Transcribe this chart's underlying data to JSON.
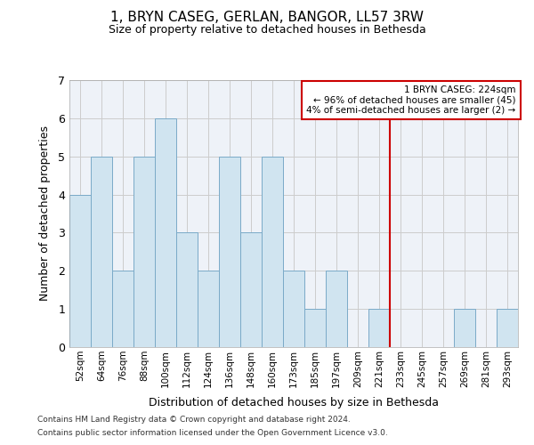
{
  "title1": "1, BRYN CASEG, GERLAN, BANGOR, LL57 3RW",
  "title2": "Size of property relative to detached houses in Bethesda",
  "xlabel": "Distribution of detached houses by size in Bethesda",
  "ylabel": "Number of detached properties",
  "categories": [
    "52sqm",
    "64sqm",
    "76sqm",
    "88sqm",
    "100sqm",
    "112sqm",
    "124sqm",
    "136sqm",
    "148sqm",
    "160sqm",
    "173sqm",
    "185sqm",
    "197sqm",
    "209sqm",
    "221sqm",
    "233sqm",
    "245sqm",
    "257sqm",
    "269sqm",
    "281sqm",
    "293sqm"
  ],
  "values": [
    4,
    5,
    2,
    5,
    6,
    3,
    2,
    5,
    3,
    5,
    2,
    1,
    2,
    0,
    1,
    0,
    0,
    0,
    1,
    0,
    1
  ],
  "bar_color": "#d0e4f0",
  "bar_edge_color": "#7aaac8",
  "grid_color": "#cccccc",
  "bg_color": "#eef2f8",
  "red_line_x": 14.5,
  "annotation_line1": "1 BRYN CASEG: 224sqm",
  "annotation_line2": "← 96% of detached houses are smaller (45)",
  "annotation_line3": "4% of semi-detached houses are larger (2) →",
  "annotation_box_color": "#cc0000",
  "footer1": "Contains HM Land Registry data © Crown copyright and database right 2024.",
  "footer2": "Contains public sector information licensed under the Open Government Licence v3.0.",
  "ylim": [
    0,
    7
  ],
  "yticks": [
    0,
    1,
    2,
    3,
    4,
    5,
    6,
    7
  ]
}
